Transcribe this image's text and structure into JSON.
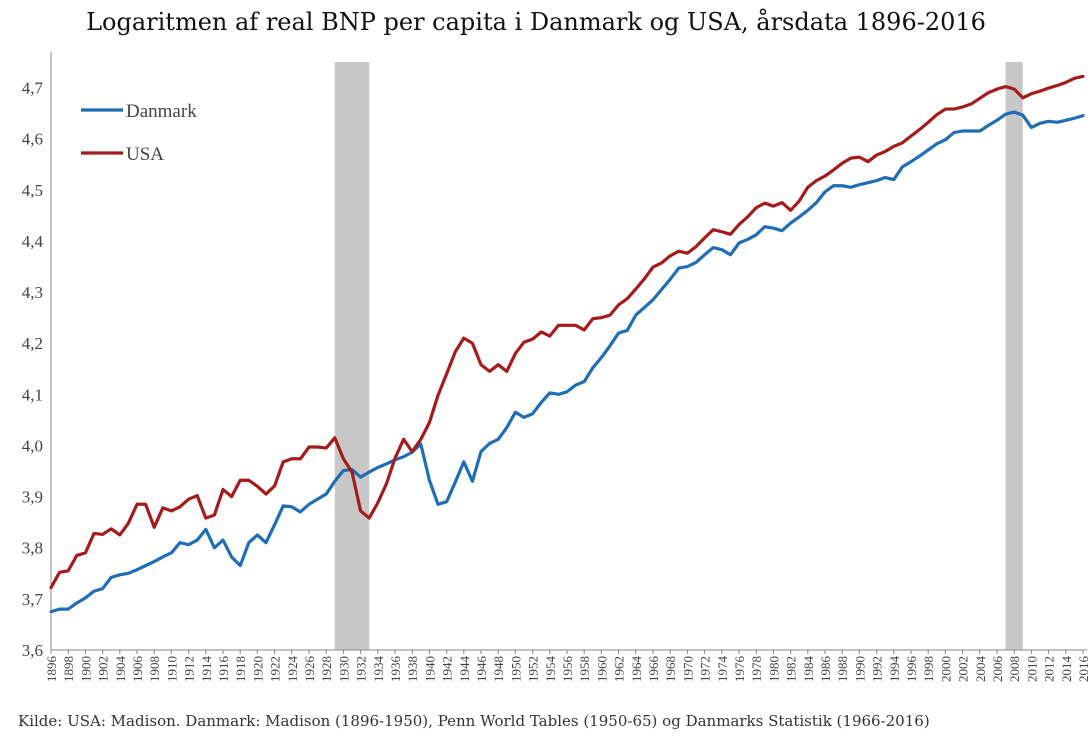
{
  "chart_data": {
    "type": "line",
    "title": "Logaritmen af real BNP per capita i Danmark og USA, årsdata 1896-2016",
    "source": "Kilde: USA: Madison. Danmark: Madison (1896-1950), Penn World Tables (1950-65) og Danmarks Statistik (1966-2016)",
    "xlabel": "",
    "ylabel": "",
    "xlim": [
      1896,
      2016
    ],
    "ylim": [
      3.6,
      4.75
    ],
    "y_ticks": [
      3.6,
      3.7,
      3.8,
      3.9,
      4.0,
      4.1,
      4.2,
      4.3,
      4.4,
      4.5,
      4.6,
      4.7
    ],
    "y_tick_labels": [
      "3,6",
      "3,7",
      "3,8",
      "3,9",
      "4,0",
      "4,1",
      "4,2",
      "4,3",
      "4,4",
      "4,5",
      "4,6",
      "4,7"
    ],
    "x_ticks": [
      1896,
      1898,
      1900,
      1902,
      1904,
      1906,
      1908,
      1910,
      1912,
      1914,
      1916,
      1918,
      1920,
      1922,
      1924,
      1926,
      1928,
      1930,
      1932,
      1934,
      1936,
      1938,
      1940,
      1942,
      1944,
      1946,
      1948,
      1950,
      1952,
      1954,
      1956,
      1958,
      1960,
      1962,
      1964,
      1966,
      1968,
      1970,
      1972,
      1974,
      1976,
      1978,
      1980,
      1982,
      1984,
      1986,
      1988,
      1990,
      1992,
      1994,
      1996,
      1998,
      2000,
      2002,
      2004,
      2006,
      2008,
      2010,
      2012,
      2014,
      2016
    ],
    "grid": false,
    "legend": "top-left",
    "shaded_periods": [
      [
        1929,
        1933
      ],
      [
        2007,
        2009
      ]
    ],
    "colors": {
      "Danmark": "#1f6db5",
      "USA": "#a51b1b",
      "shading": "#c8c8c8"
    },
    "x": [
      1896,
      1897,
      1898,
      1899,
      1900,
      1901,
      1902,
      1903,
      1904,
      1905,
      1906,
      1907,
      1908,
      1909,
      1910,
      1911,
      1912,
      1913,
      1914,
      1915,
      1916,
      1917,
      1918,
      1919,
      1920,
      1921,
      1922,
      1923,
      1924,
      1925,
      1926,
      1927,
      1928,
      1929,
      1930,
      1931,
      1932,
      1933,
      1934,
      1935,
      1936,
      1937,
      1938,
      1939,
      1940,
      1941,
      1942,
      1943,
      1944,
      1945,
      1946,
      1947,
      1948,
      1949,
      1950,
      1951,
      1952,
      1953,
      1954,
      1955,
      1956,
      1957,
      1958,
      1959,
      1960,
      1961,
      1962,
      1963,
      1964,
      1965,
      1966,
      1967,
      1968,
      1969,
      1970,
      1971,
      1972,
      1973,
      1974,
      1975,
      1976,
      1977,
      1978,
      1979,
      1980,
      1981,
      1982,
      1983,
      1984,
      1985,
      1986,
      1987,
      1988,
      1989,
      1990,
      1991,
      1992,
      1993,
      1994,
      1995,
      1996,
      1997,
      1998,
      1999,
      2000,
      2001,
      2002,
      2003,
      2004,
      2005,
      2006,
      2007,
      2008,
      2009,
      2010,
      2011,
      2012,
      2013,
      2014,
      2015,
      2016
    ],
    "series": [
      {
        "name": "Danmark",
        "values": [
          3.675,
          3.68,
          3.68,
          3.692,
          3.702,
          3.715,
          3.72,
          3.742,
          3.747,
          3.75,
          3.757,
          3.765,
          3.773,
          3.782,
          3.79,
          3.81,
          3.806,
          3.815,
          3.836,
          3.8,
          3.815,
          3.782,
          3.765,
          3.81,
          3.825,
          3.81,
          3.845,
          3.882,
          3.88,
          3.87,
          3.885,
          3.895,
          3.905,
          3.93,
          3.951,
          3.953,
          3.938,
          3.948,
          3.957,
          3.964,
          3.972,
          3.978,
          3.987,
          4.003,
          3.932,
          3.885,
          3.89,
          3.928,
          3.968,
          3.93,
          3.988,
          4.004,
          4.012,
          4.035,
          4.065,
          4.055,
          4.062,
          4.084,
          4.103,
          4.1,
          4.105,
          4.118,
          4.125,
          4.152,
          4.172,
          4.195,
          4.22,
          4.225,
          4.255,
          4.27,
          4.285,
          4.305,
          4.325,
          4.347,
          4.35,
          4.358,
          4.373,
          4.387,
          4.383,
          4.373,
          4.396,
          4.403,
          4.412,
          4.428,
          4.425,
          4.42,
          4.435,
          4.447,
          4.46,
          4.475,
          4.496,
          4.508,
          4.508,
          4.505,
          4.51,
          4.514,
          4.518,
          4.524,
          4.52,
          4.545,
          4.555,
          4.566,
          4.578,
          4.59,
          4.598,
          4.612,
          4.615,
          4.615,
          4.615,
          4.626,
          4.636,
          4.648,
          4.652,
          4.646,
          4.622,
          4.63,
          4.634,
          4.632,
          4.636,
          4.64,
          4.645
        ]
      },
      {
        "name": "USA",
        "values": [
          3.722,
          3.752,
          3.755,
          3.785,
          3.79,
          3.828,
          3.826,
          3.837,
          3.825,
          3.848,
          3.885,
          3.885,
          3.84,
          3.878,
          3.872,
          3.88,
          3.895,
          3.902,
          3.858,
          3.864,
          3.914,
          3.9,
          3.932,
          3.932,
          3.92,
          3.905,
          3.921,
          3.968,
          3.974,
          3.974,
          3.997,
          3.997,
          3.995,
          4.015,
          3.974,
          3.948,
          3.872,
          3.858,
          3.888,
          3.925,
          3.975,
          4.012,
          3.988,
          4.012,
          4.045,
          4.098,
          4.14,
          4.183,
          4.21,
          4.2,
          4.158,
          4.145,
          4.158,
          4.145,
          4.18,
          4.202,
          4.208,
          4.222,
          4.214,
          4.235,
          4.235,
          4.235,
          4.226,
          4.248,
          4.25,
          4.255,
          4.275,
          4.287,
          4.306,
          4.326,
          4.349,
          4.357,
          4.371,
          4.38,
          4.376,
          4.389,
          4.406,
          4.422,
          4.418,
          4.413,
          4.432,
          4.447,
          4.465,
          4.474,
          4.468,
          4.475,
          4.46,
          4.478,
          4.505,
          4.518,
          4.527,
          4.539,
          4.552,
          4.562,
          4.564,
          4.555,
          4.568,
          4.575,
          4.585,
          4.592,
          4.605,
          4.618,
          4.632,
          4.647,
          4.658,
          4.658,
          4.662,
          4.668,
          4.679,
          4.69,
          4.697,
          4.702,
          4.697,
          4.68,
          4.688,
          4.693,
          4.699,
          4.704,
          4.71,
          4.718,
          4.722
        ]
      }
    ]
  }
}
